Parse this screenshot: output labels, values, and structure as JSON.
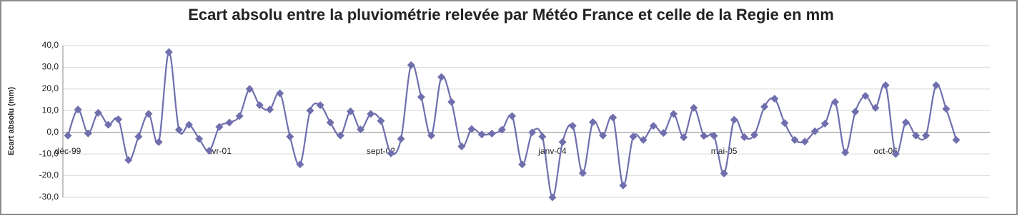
{
  "chart_data": {
    "type": "line",
    "title": "Ecart absolu entre la pluviométrie relevée par Météo France et celle de la Regie en mm",
    "y_label": "Ecart absolu (mm)",
    "color": "#6f6fae",
    "categories": [
      "déc-99",
      null,
      null,
      null,
      null,
      null,
      null,
      null,
      null,
      null,
      null,
      null,
      null,
      null,
      null,
      "avr-01",
      null,
      null,
      null,
      null,
      null,
      null,
      null,
      null,
      null,
      null,
      null,
      null,
      null,
      null,
      null,
      "sept-02",
      null,
      null,
      null,
      null,
      null,
      null,
      null,
      null,
      null,
      null,
      null,
      null,
      null,
      null,
      null,
      null,
      "janv-04",
      null,
      null,
      null,
      null,
      null,
      null,
      null,
      null,
      null,
      null,
      null,
      null,
      null,
      null,
      null,
      null,
      "mai-05",
      null,
      null,
      null,
      null,
      null,
      null,
      null,
      null,
      null,
      null,
      null,
      null,
      null,
      null,
      null,
      "oct-06",
      null,
      null,
      null,
      null,
      null,
      null,
      null
    ],
    "values": [
      -1.5,
      10.5,
      -0.5,
      9,
      3.5,
      6,
      -12.8,
      -2,
      8.5,
      -4.5,
      37,
      1.2,
      3.5,
      -3,
      -8.5,
      2.5,
      4.5,
      7.5,
      20,
      12.5,
      10.5,
      18,
      -2,
      -14.8,
      10,
      12.5,
      4.5,
      -1.5,
      9.7,
      1.3,
      8.5,
      5.3,
      -9.7,
      -3,
      31,
      16.3,
      -1.5,
      25.5,
      14,
      -6.5,
      1.5,
      -1,
      -0.6,
      1.2,
      7.5,
      -14.8,
      0,
      -2,
      -30,
      -4.5,
      3,
      -18.8,
      4.7,
      -1.5,
      6.8,
      -24.5,
      -2,
      -3.5,
      3,
      -0.3,
      8.5,
      -2.3,
      11.3,
      -1.6,
      -1.6,
      -19,
      5.8,
      -2.2,
      -1.2,
      11.8,
      15.5,
      4.3,
      -3.5,
      -4.3,
      0.5,
      4,
      14,
      -9.3,
      9.5,
      16.8,
      11.3,
      21.7,
      -10,
      4.6,
      -1.5,
      -1.5,
      21.7,
      10.8,
      -3.5
    ],
    "ylim": [
      -30,
      40
    ],
    "yticks": [
      {
        "value": -30,
        "label": "-30,0"
      },
      {
        "value": -20,
        "label": "-20,0"
      },
      {
        "value": -10,
        "label": "-10,0"
      },
      {
        "value": 0,
        "label": "0,0"
      },
      {
        "value": 10,
        "label": "10,0"
      },
      {
        "value": 20,
        "label": "20,0"
      },
      {
        "value": 30,
        "label": "30,0"
      },
      {
        "value": 40,
        "label": "40,0"
      }
    ],
    "grid": true
  }
}
